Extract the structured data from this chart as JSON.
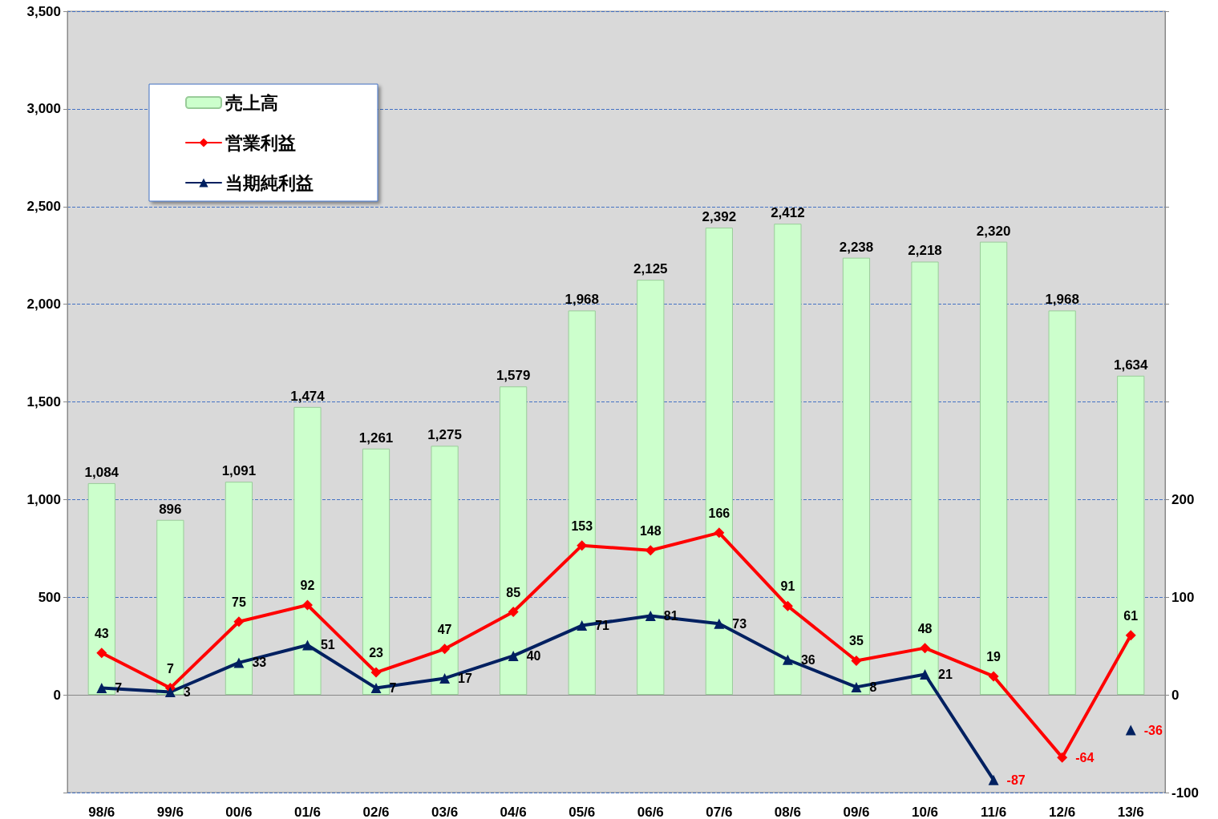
{
  "chart_data": {
    "type": "bar",
    "categories": [
      "98/6",
      "99/6",
      "00/6",
      "01/6",
      "02/6",
      "03/6",
      "04/6",
      "05/6",
      "06/6",
      "07/6",
      "08/6",
      "09/6",
      "10/6",
      "11/6",
      "12/6",
      "13/6"
    ],
    "series": [
      {
        "name": "売上高",
        "color": "#ccffcc",
        "values": [
          1084,
          896,
          1091,
          1474,
          1261,
          1275,
          1579,
          1968,
          2125,
          2392,
          2412,
          2238,
          2218,
          2320,
          1968,
          1634
        ],
        "value_labels": [
          "1,084",
          "896",
          "1,091",
          "1,474",
          "1,261",
          "1,275",
          "1,579",
          "1,968",
          "2,125",
          "2,392",
          "2,412",
          "2,238",
          "2,218",
          "2,320",
          "1,968",
          "1,634"
        ]
      },
      {
        "name": "営業利益",
        "type": "line",
        "axis": "y2",
        "color": "#ff0000",
        "marker": "diamond",
        "values": [
          43,
          7,
          75,
          92,
          23,
          47,
          85,
          153,
          148,
          166,
          91,
          35,
          48,
          19,
          -64,
          61
        ]
      },
      {
        "name": "当期純利益",
        "type": "line",
        "axis": "y2",
        "color": "#002060",
        "marker": "triangle",
        "values": [
          7,
          3,
          33,
          51,
          7,
          17,
          40,
          71,
          81,
          73,
          36,
          8,
          21,
          -87,
          null,
          -36
        ]
      }
    ],
    "ylim": [
      -500,
      3500
    ],
    "yticks": [
      {
        "value": -500,
        "label": null
      },
      0,
      500,
      {
        "value": 1000,
        "label": "1,000"
      },
      {
        "value": 1500,
        "label": "1,500"
      },
      {
        "value": 2000,
        "label": "2,000"
      },
      {
        "value": 2500,
        "label": "2,500"
      },
      {
        "value": 3000,
        "label": "3,000"
      },
      {
        "value": 3500,
        "label": "3,500"
      }
    ],
    "y2lim": [
      -100,
      700
    ],
    "y2ticks": [
      -100,
      0,
      100,
      200,
      {
        "value": 300,
        "label": null
      },
      {
        "value": 400,
        "label": null
      },
      {
        "value": 500,
        "label": null
      },
      {
        "value": 600,
        "label": null
      },
      {
        "value": 700,
        "label": null
      }
    ],
    "grid": "y",
    "legend": "top left",
    "data_labels": true,
    "line_style": "solid"
  }
}
